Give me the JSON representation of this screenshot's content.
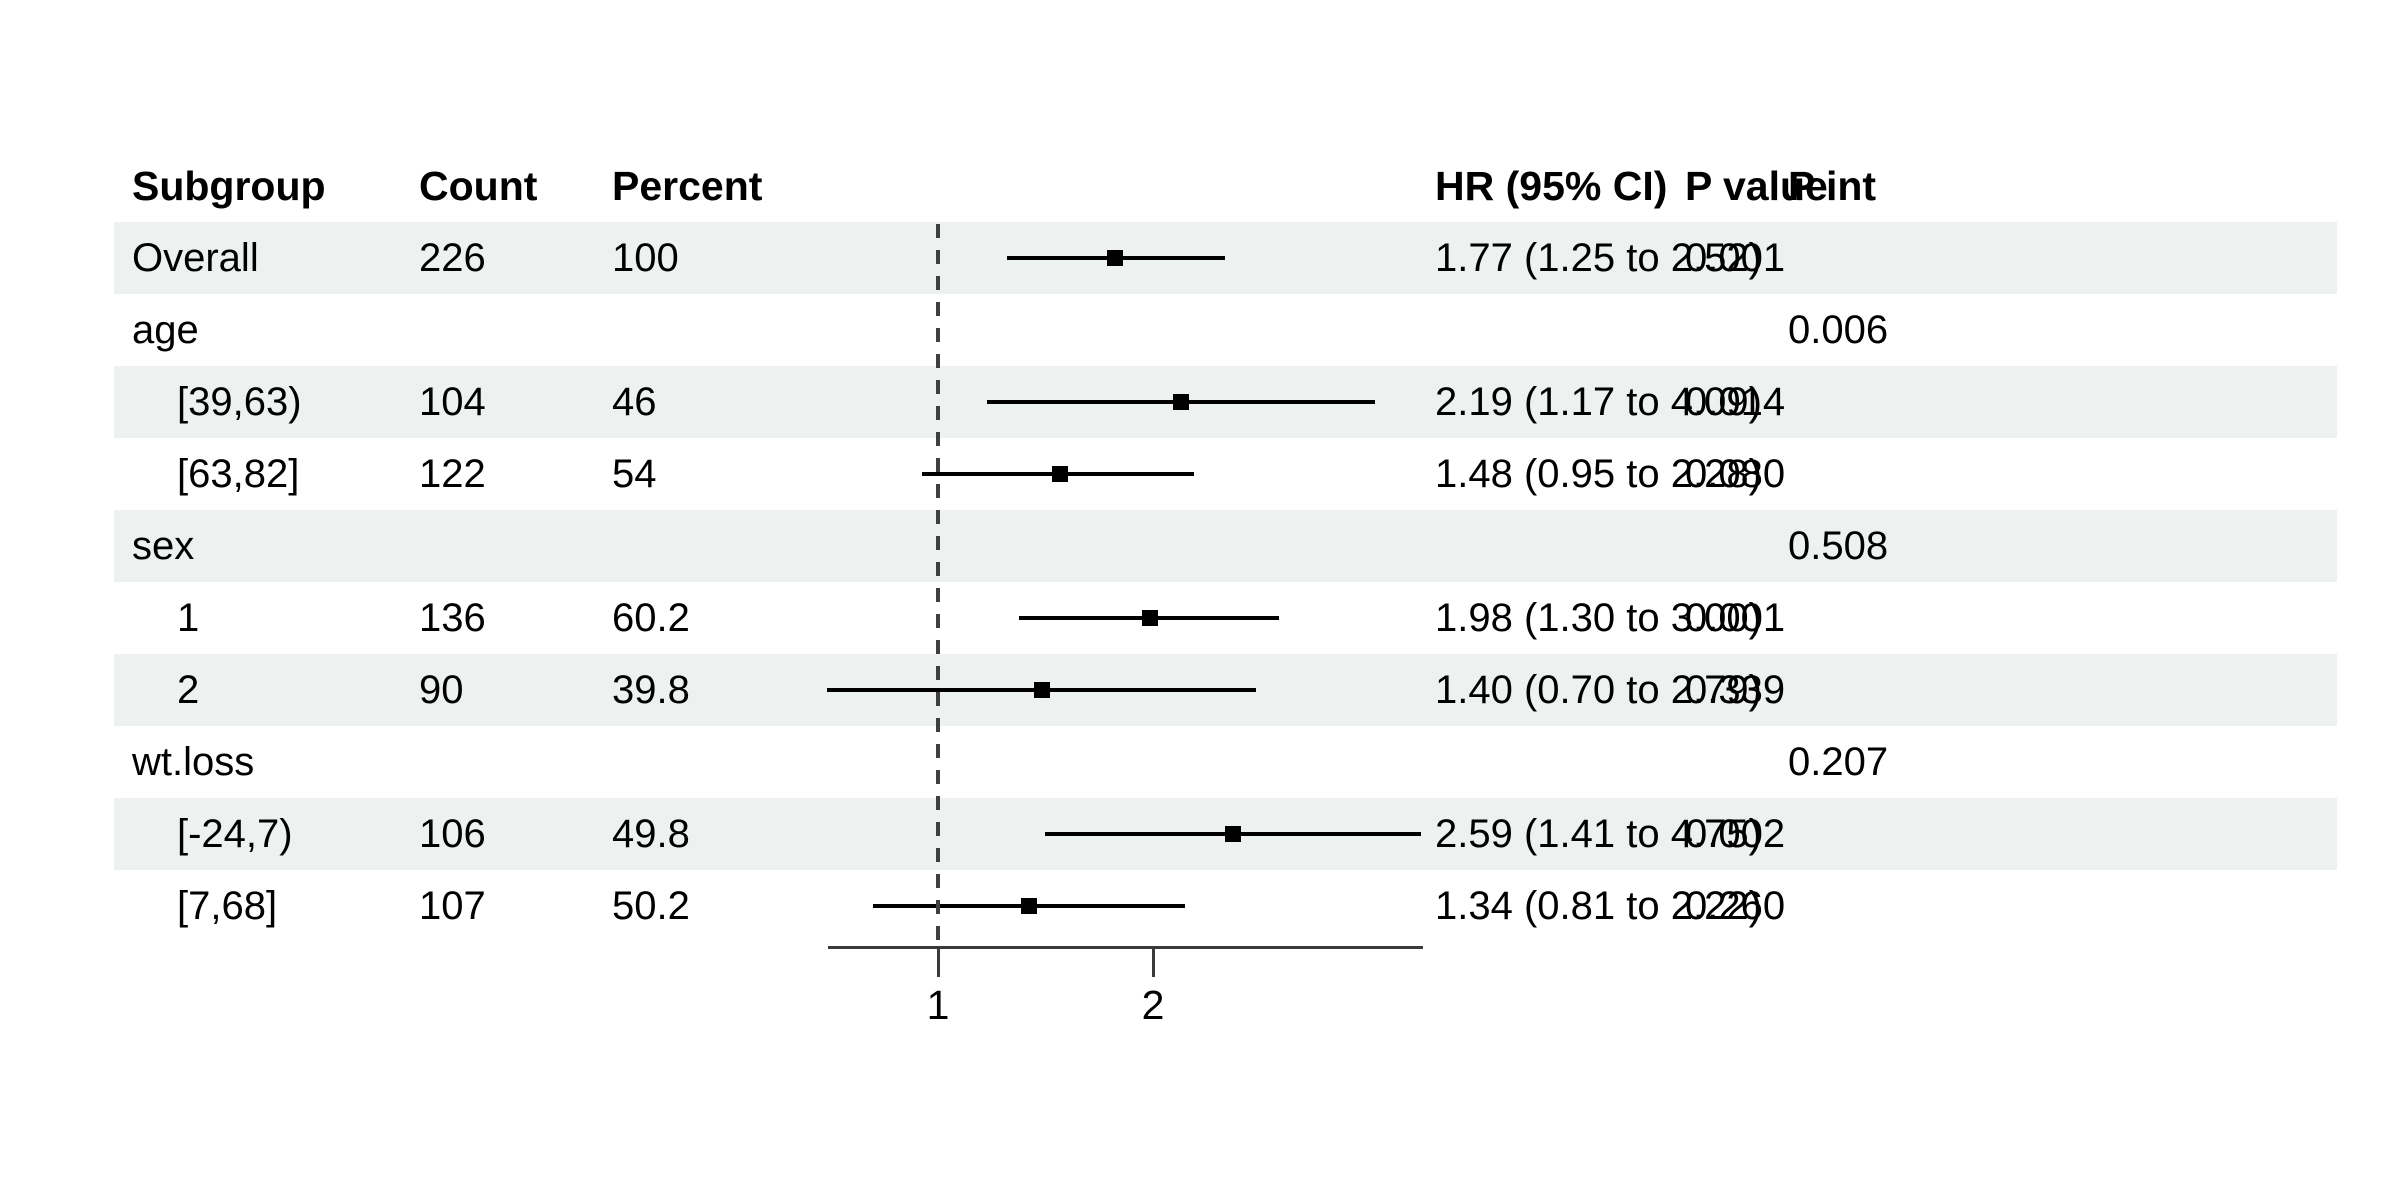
{
  "chart_data": {
    "type": "forest",
    "columns": [
      "Subgroup",
      "Count",
      "Percent",
      "HR (95% CI)",
      "P value",
      "P int"
    ],
    "rows": [
      {
        "subgroup": "Overall",
        "indent": false,
        "count": "226",
        "percent": "100",
        "hr": 1.77,
        "ci_low": 1.25,
        "ci_high": 2.52,
        "hr_text": "1.77 (1.25 to 2.52)",
        "p_value": "0.001",
        "p_int": ""
      },
      {
        "subgroup": "age",
        "indent": false,
        "count": "",
        "percent": "",
        "hr": null,
        "ci_low": null,
        "ci_high": null,
        "hr_text": "",
        "p_value": "",
        "p_int": "0.006"
      },
      {
        "subgroup": "[39,63)",
        "indent": true,
        "count": "104",
        "percent": "46",
        "hr": 2.19,
        "ci_low": 1.17,
        "ci_high": 4.09,
        "hr_text": "2.19 (1.17 to 4.09)",
        "p_value": "0.014",
        "p_int": ""
      },
      {
        "subgroup": "[63,82]",
        "indent": true,
        "count": "122",
        "percent": "54",
        "hr": 1.48,
        "ci_low": 0.95,
        "ci_high": 2.28,
        "hr_text": "1.48 (0.95 to 2.28)",
        "p_value": "0.080",
        "p_int": ""
      },
      {
        "subgroup": "sex",
        "indent": false,
        "count": "",
        "percent": "",
        "hr": null,
        "ci_low": null,
        "ci_high": null,
        "hr_text": "",
        "p_value": "",
        "p_int": "0.508"
      },
      {
        "subgroup": "1",
        "indent": true,
        "count": "136",
        "percent": "60.2",
        "hr": 1.98,
        "ci_low": 1.3,
        "ci_high": 3.0,
        "hr_text": "1.98 (1.30 to 3.00)",
        "p_value": "0.001",
        "p_int": ""
      },
      {
        "subgroup": "2",
        "indent": true,
        "count": "90",
        "percent": "39.8",
        "hr": 1.4,
        "ci_low": 0.7,
        "ci_high": 2.79,
        "hr_text": "1.40 (0.70 to 2.79)",
        "p_value": "0.339",
        "p_int": ""
      },
      {
        "subgroup": "wt.loss",
        "indent": false,
        "count": "",
        "percent": "",
        "hr": null,
        "ci_low": null,
        "ci_high": null,
        "hr_text": "",
        "p_value": "",
        "p_int": "0.207"
      },
      {
        "subgroup": "[-24,7)",
        "indent": true,
        "count": "106",
        "percent": "49.8",
        "hr": 2.59,
        "ci_low": 1.41,
        "ci_high": 4.75,
        "hr_text": "2.59 (1.41 to 4.75)",
        "p_value": "0.002",
        "p_int": ""
      },
      {
        "subgroup": "[7,68]",
        "indent": true,
        "count": "107",
        "percent": "50.2",
        "hr": 1.34,
        "ci_low": 0.81,
        "ci_high": 2.22,
        "hr_text": "1.34 (0.81 to 2.22)",
        "p_value": "0.260",
        "p_int": ""
      }
    ],
    "x_axis": {
      "scale": "log",
      "ticks": [
        "1",
        "2"
      ],
      "tick_values": [
        1,
        2
      ],
      "reference_line": 1,
      "range_approx": [
        0.7,
        4.78
      ]
    },
    "legend": null,
    "grid": "row-stripes",
    "colors": {
      "stripe": "#edf1ef",
      "ci_line": "#000000",
      "marker": "#000000",
      "reference_line": "#3f3f3f",
      "axis": "#3a3a3a",
      "text": "#000000",
      "background": "#ffffff"
    }
  }
}
